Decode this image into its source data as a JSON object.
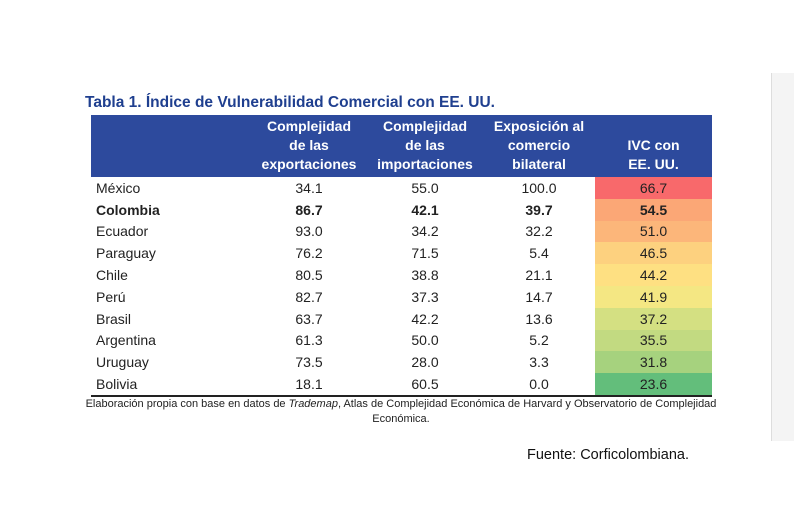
{
  "title": "Tabla 1. Índice de Vulnerabilidad Comercial con EE. UU.",
  "table": {
    "header": [
      [],
      [
        "Complejidad",
        "de las",
        "exportaciones"
      ],
      [
        "Complejidad",
        "de las",
        "importaciones"
      ],
      [
        "Exposición al",
        "comercio",
        "bilateral"
      ],
      [
        "IVC con",
        "EE. UU."
      ]
    ],
    "rows": [
      {
        "cells": [
          "México",
          "34.1",
          "55.0",
          "100.0",
          "66.7"
        ],
        "color": "#f8696b"
      },
      {
        "cells": [
          "Colombia",
          "86.7",
          "42.1",
          "39.7",
          "54.5"
        ],
        "color": "#fba776",
        "bold": true
      },
      {
        "cells": [
          "Ecuador",
          "93.0",
          "34.2",
          "32.2",
          "51.0"
        ],
        "color": "#fcb67a"
      },
      {
        "cells": [
          "Paraguay",
          "76.2",
          "71.5",
          "5.4",
          "46.5"
        ],
        "color": "#fdd17f"
      },
      {
        "cells": [
          "Chile",
          "80.5",
          "38.8",
          "21.1",
          "44.2"
        ],
        "color": "#fee082"
      },
      {
        "cells": [
          "Perú",
          "82.7",
          "37.3",
          "14.7",
          "41.9"
        ],
        "color": "#f4e783"
      },
      {
        "cells": [
          "Brasil",
          "63.7",
          "42.2",
          "13.6",
          "37.2"
        ],
        "color": "#d4e082"
      },
      {
        "cells": [
          "Argentina",
          "61.3",
          "50.0",
          "5.2",
          "35.5"
        ],
        "color": "#c2da81"
      },
      {
        "cells": [
          "Uruguay",
          "73.5",
          "28.0",
          "3.3",
          "31.8"
        ],
        "color": "#a6d27e"
      },
      {
        "cells": [
          "Bolivia",
          "18.1",
          "60.5",
          "0.0",
          "23.6"
        ],
        "color": "#63be7b"
      }
    ]
  },
  "note": [
    "Elaboración propia con base en datos de ",
    "Trademap",
    ", Atlas de Complejidad Económica de Harvard y Observatorio de Complejidad Económica."
  ],
  "source": "Fuente: Corficolombiana."
}
